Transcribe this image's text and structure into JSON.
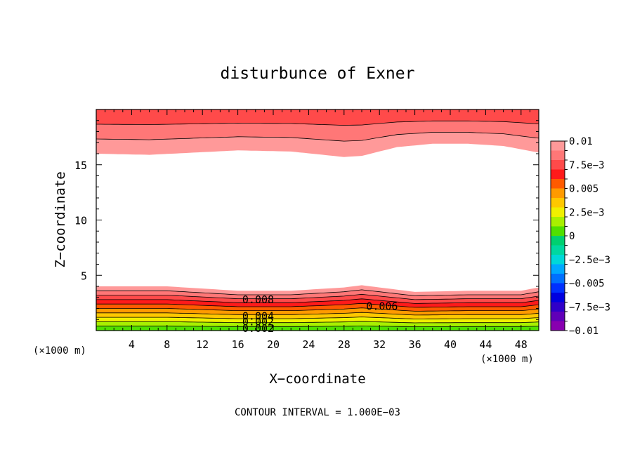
{
  "chart_data": {
    "type": "contour",
    "title": "disturbunce of Exner",
    "xlabel": "X−coordinate",
    "ylabel": "Z−coordinate",
    "x_unit_left": "(×1000 m)",
    "x_unit_right": "(×1000 m)",
    "footer": "CONTOUR INTERVAL = 1.000E−03",
    "xlim": [
      0,
      50
    ],
    "ylim": [
      0,
      20
    ],
    "x_ticks": [
      4,
      8,
      12,
      16,
      20,
      24,
      28,
      32,
      36,
      40,
      44,
      48
    ],
    "y_ticks": [
      5,
      10,
      15
    ],
    "contour_interval": 0.001,
    "contour_labels": [
      {
        "text": "0.008",
        "x": 16.5,
        "z": 2.8
      },
      {
        "text": "0.006",
        "x": 30.5,
        "z": 2.2
      },
      {
        "text": "0.004",
        "x": 16.5,
        "z": 1.3
      },
      {
        "text": "0.002",
        "x": 16.5,
        "z": 0.8
      },
      {
        "text": "0.002",
        "x": 16.5,
        "z": 0.2
      }
    ],
    "bottom_layer": {
      "x": [
        0,
        8,
        16,
        22,
        28,
        30,
        32,
        36,
        42,
        46,
        48,
        50
      ],
      "top_z": [
        4.0,
        4.0,
        3.6,
        3.6,
        3.9,
        4.1,
        3.9,
        3.5,
        3.6,
        3.6,
        3.6,
        3.9
      ]
    },
    "top_layer": {
      "x": [
        0,
        6,
        16,
        22,
        28,
        30,
        34,
        38,
        42,
        46,
        50
      ],
      "bottom_z": [
        16.0,
        15.9,
        16.3,
        16.2,
        15.7,
        15.8,
        16.6,
        16.9,
        16.9,
        16.7,
        16.1
      ]
    },
    "colorbar": {
      "labels": [
        "0.01",
        "7.5e−3",
        "0.005",
        "2.5e−3",
        "0",
        "−2.5e−3",
        "−0.005",
        "−7.5e−3",
        "−0.01"
      ],
      "levels": [
        0.01,
        0.009,
        0.008,
        0.007,
        0.006,
        0.005,
        0.004,
        0.003,
        0.002,
        0.001,
        0,
        -0.001,
        -0.002,
        -0.003,
        -0.004,
        -0.005,
        -0.006,
        -0.007,
        -0.008,
        -0.009,
        -0.01
      ],
      "colors": [
        "#ff9999",
        "#ff7777",
        "#ff4a4a",
        "#ff1a1a",
        "#ff5a00",
        "#ff9a00",
        "#ffc800",
        "#f0f000",
        "#a8f000",
        "#50e000",
        "#00d070",
        "#00d8a0",
        "#00d8d8",
        "#00a8ff",
        "#0070ff",
        "#0030ff",
        "#0000e0",
        "#3000c8",
        "#6000b8",
        "#8800b0"
      ]
    }
  }
}
